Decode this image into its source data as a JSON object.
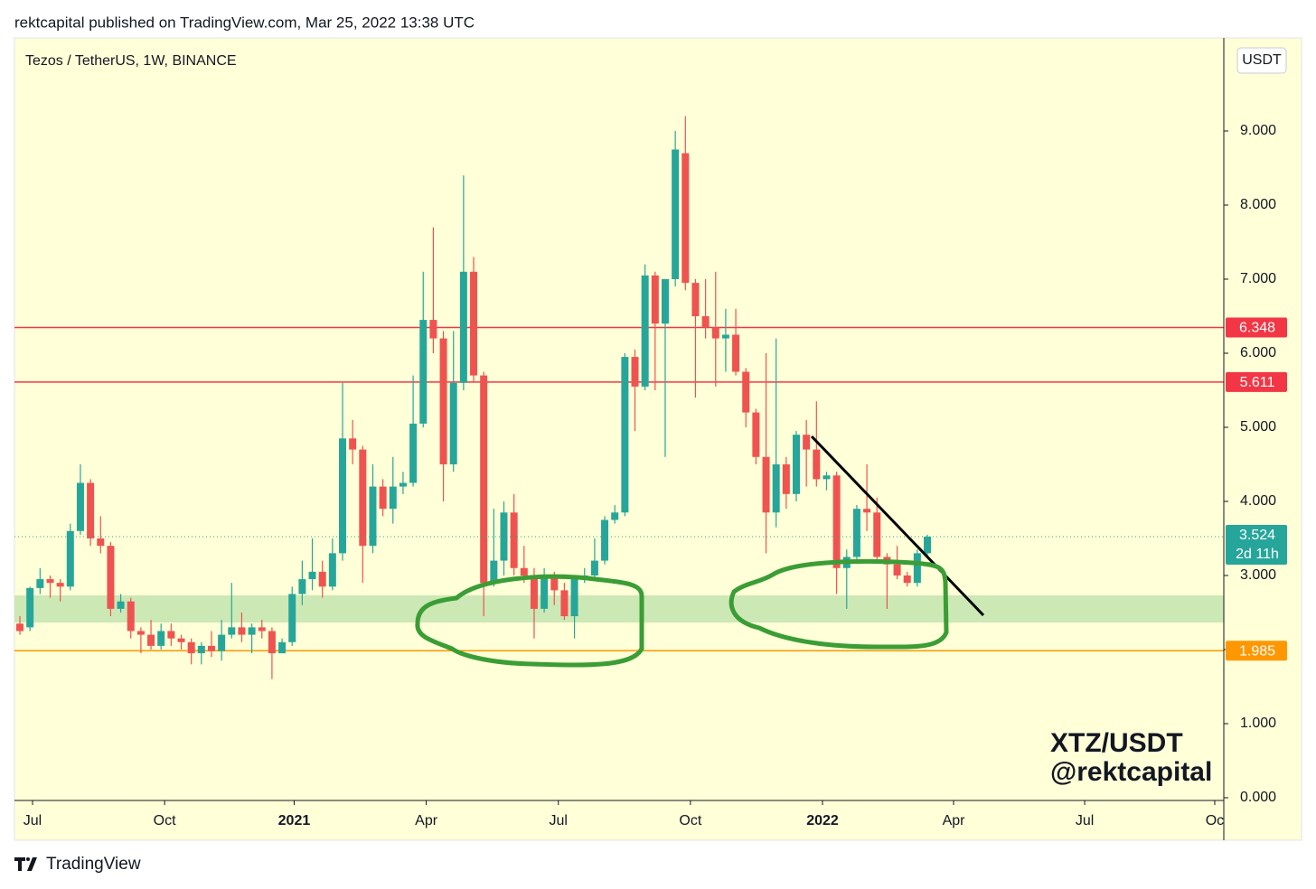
{
  "header": {
    "text": "rektcapital published on TradingView.com, Mar 25, 2022 13:38 UTC"
  },
  "footer": {
    "brand": "TradingView"
  },
  "chart_data": {
    "type": "candlestick",
    "title": "Tezos / TetherUS, 1W, BINANCE",
    "currency": "USDT",
    "watermark": [
      "XTZ/USDT",
      "@rektcapital"
    ],
    "up_color": "#26a69a",
    "down_color": "#ef5350",
    "open": [
      2.35,
      2.3,
      2.83,
      2.95,
      2.9,
      2.85,
      3.6,
      4.25,
      3.5,
      3.4,
      2.55,
      2.65,
      2.25,
      2.2,
      2.05,
      2.25,
      2.15,
      2.1,
      1.95,
      2.05,
      1.98,
      2.2,
      2.3,
      2.2,
      2.3,
      2.25,
      1.95,
      2.1,
      2.75,
      2.95,
      3.05,
      2.85,
      3.3,
      4.85,
      4.7,
      3.4,
      4.2,
      3.9,
      4.2,
      4.25,
      5.05,
      6.45,
      6.2,
      4.5,
      5.6,
      7.1,
      5.7,
      2.9,
      3.2,
      3.85,
      3.1,
      3.0,
      2.55,
      3.0,
      2.8,
      2.45,
      2.95,
      3.0,
      3.2,
      3.75,
      3.85,
      5.95,
      5.55,
      7.05,
      6.4,
      7.0,
      8.7,
      6.95,
      6.5,
      6.35,
      6.2,
      6.25,
      5.75,
      5.2,
      4.6,
      3.85,
      4.5,
      4.1,
      4.9,
      4.7,
      4.3,
      4.35,
      3.1,
      3.25,
      3.9,
      3.85,
      3.25,
      3.15,
      3.0,
      2.9,
      3.3
    ],
    "high": [
      2.45,
      2.85,
      3.1,
      3.0,
      2.95,
      3.7,
      4.5,
      4.3,
      3.8,
      3.45,
      2.75,
      2.7,
      2.3,
      2.4,
      2.35,
      2.35,
      2.2,
      2.15,
      2.1,
      2.25,
      2.4,
      2.9,
      2.5,
      2.35,
      2.4,
      2.3,
      2.15,
      2.85,
      3.2,
      3.5,
      3.2,
      3.5,
      5.6,
      5.1,
      4.75,
      4.5,
      4.3,
      4.6,
      4.4,
      5.7,
      7.1,
      7.7,
      6.3,
      6.3,
      8.4,
      7.3,
      5.75,
      3.9,
      4.0,
      4.1,
      3.4,
      3.1,
      3.1,
      3.05,
      2.9,
      3.0,
      3.1,
      3.5,
      3.8,
      3.95,
      6.0,
      6.05,
      7.2,
      7.1,
      7.0,
      9.0,
      9.2,
      7.0,
      7.0,
      7.1,
      6.6,
      6.6,
      5.8,
      5.25,
      6.0,
      6.2,
      4.6,
      4.95,
      5.1,
      5.35,
      4.4,
      4.4,
      3.35,
      3.95,
      4.5,
      4.05,
      3.3,
      3.4,
      3.05,
      3.35,
      3.55
    ],
    "low": [
      2.2,
      2.25,
      2.75,
      2.7,
      2.65,
      2.8,
      3.55,
      3.4,
      3.3,
      2.45,
      2.5,
      2.15,
      1.95,
      2.0,
      2.0,
      2.05,
      2.0,
      1.8,
      1.8,
      1.9,
      1.85,
      2.15,
      2.1,
      1.95,
      2.15,
      1.6,
      1.95,
      2.05,
      2.6,
      2.8,
      2.7,
      2.8,
      3.2,
      4.5,
      2.9,
      3.3,
      3.8,
      3.7,
      4.1,
      4.2,
      5.0,
      6.0,
      4.0,
      4.4,
      5.5,
      5.6,
      2.45,
      2.85,
      3.0,
      3.0,
      2.9,
      2.15,
      2.5,
      2.6,
      2.4,
      2.15,
      2.9,
      2.95,
      3.15,
      3.7,
      3.8,
      4.95,
      5.5,
      5.5,
      4.6,
      6.9,
      6.85,
      5.4,
      6.2,
      5.55,
      5.75,
      5.7,
      5.0,
      4.5,
      3.3,
      3.65,
      3.9,
      4.0,
      4.2,
      4.2,
      4.15,
      2.75,
      2.55,
      3.2,
      3.6,
      3.2,
      2.55,
      2.95,
      2.85,
      2.85,
      3.25
    ],
    "close": [
      2.25,
      2.83,
      2.95,
      2.9,
      2.85,
      3.6,
      4.25,
      3.5,
      3.4,
      2.55,
      2.65,
      2.25,
      2.2,
      2.05,
      2.25,
      2.15,
      2.1,
      1.95,
      2.05,
      1.98,
      2.2,
      2.3,
      2.2,
      2.3,
      2.25,
      1.95,
      2.1,
      2.75,
      2.95,
      3.05,
      2.85,
      3.3,
      4.85,
      4.7,
      3.4,
      4.2,
      3.9,
      4.2,
      4.25,
      5.05,
      6.45,
      6.2,
      4.5,
      5.6,
      7.1,
      5.7,
      2.9,
      3.2,
      3.85,
      3.1,
      3.0,
      2.55,
      3.0,
      2.8,
      2.45,
      2.95,
      3.0,
      3.2,
      3.75,
      3.85,
      5.95,
      5.55,
      7.05,
      6.4,
      7.0,
      8.75,
      6.95,
      6.5,
      6.35,
      6.2,
      6.25,
      5.75,
      5.2,
      4.6,
      3.85,
      4.5,
      4.1,
      4.9,
      4.7,
      4.3,
      4.35,
      3.1,
      3.25,
      3.9,
      3.85,
      3.25,
      3.15,
      3.0,
      2.9,
      3.3,
      3.524
    ],
    "countdown": "2d 11h",
    "levels": [
      {
        "value": 6.348,
        "color": "#f23645"
      },
      {
        "value": 5.611,
        "color": "#f23645"
      },
      {
        "value": 1.985,
        "color": "#ff9800"
      }
    ],
    "xlim": [
      -0.54,
      119.4
    ],
    "xticks": [
      {
        "value": 1.25,
        "label": "Jul"
      },
      {
        "value": 14.35,
        "label": "Oct"
      },
      {
        "value": 27.2,
        "label": "2021"
      },
      {
        "value": 40.3,
        "label": "Apr"
      },
      {
        "value": 53.4,
        "label": "Jul"
      },
      {
        "value": 66.5,
        "label": "Oct"
      },
      {
        "value": 79.6,
        "label": "2022"
      },
      {
        "value": 92.6,
        "label": "Apr"
      },
      {
        "value": 105.6,
        "label": "Jul"
      },
      {
        "value": 118.5,
        "label": "Oc"
      }
    ],
    "ylim": [
      -0.037,
      10.256
    ],
    "yticks": [
      {
        "value": 0,
        "label": "0.000"
      },
      {
        "value": 1,
        "label": "1.000"
      },
      {
        "value": 2,
        "label": "2.000"
      },
      {
        "value": 3,
        "label": "3.000"
      },
      {
        "value": 4,
        "label": "4.000"
      },
      {
        "value": 5,
        "label": "5.000"
      },
      {
        "value": 6,
        "label": "6.000"
      },
      {
        "value": 7,
        "label": "7.000"
      },
      {
        "value": 8,
        "label": "8.000"
      },
      {
        "value": 9,
        "label": "9.000"
      }
    ]
  }
}
